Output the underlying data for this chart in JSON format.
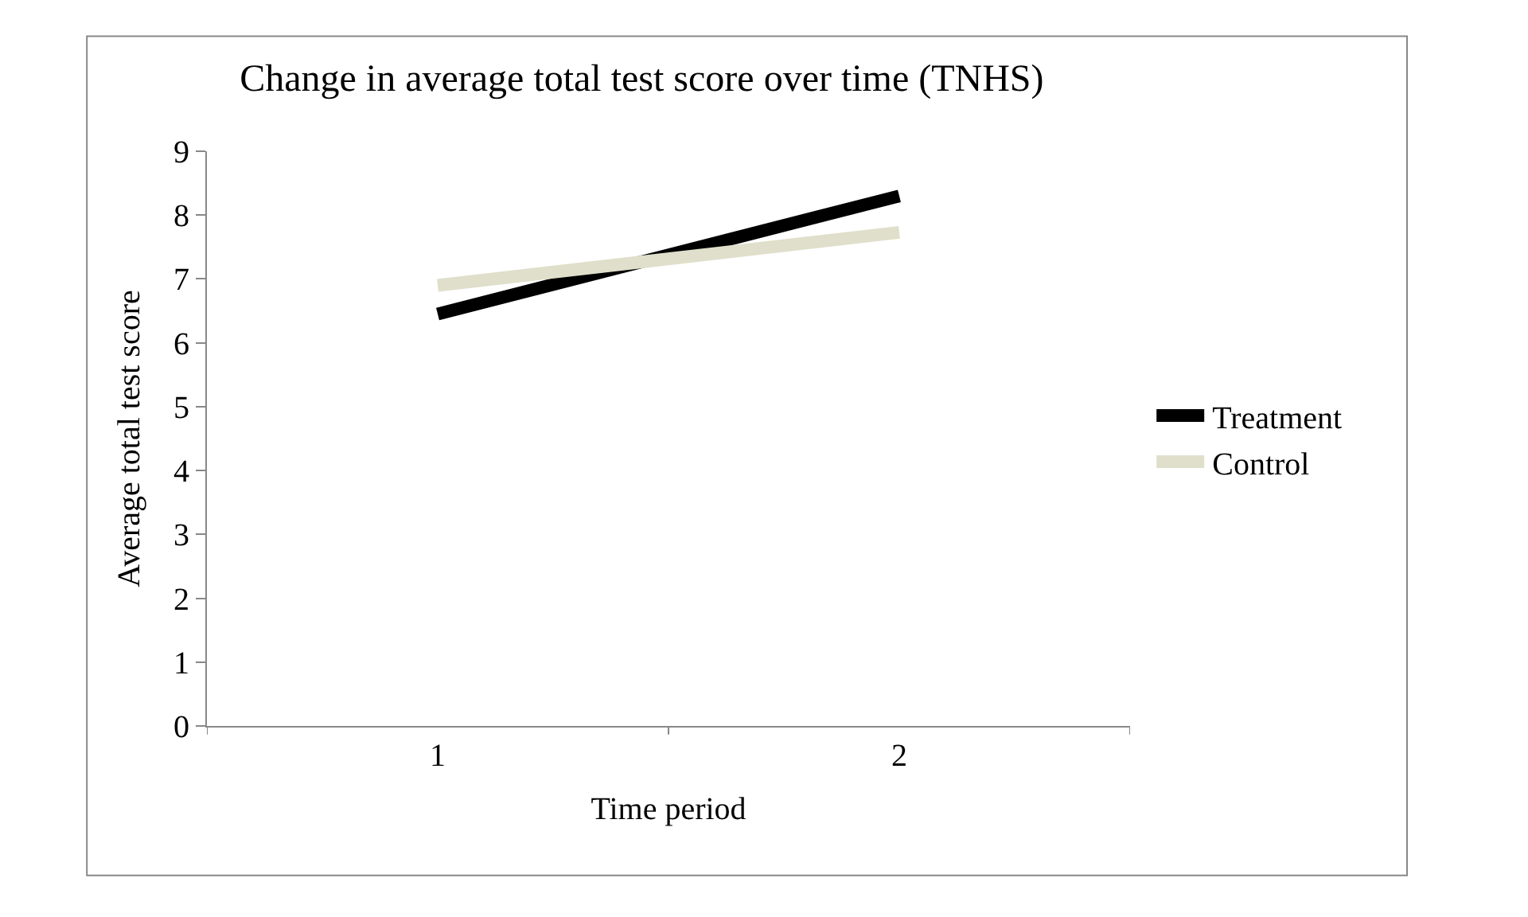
{
  "chart_data": {
    "type": "line",
    "title": "Change in average total test score over time (TNHS)",
    "xlabel": "Time period",
    "ylabel": "Average total test score",
    "categories": [
      "1",
      "2"
    ],
    "series": [
      {
        "name": "Treatment",
        "color": "#000000",
        "values": [
          6.45,
          8.3
        ]
      },
      {
        "name": "Control",
        "color": "#e0dfcb",
        "values": [
          6.9,
          7.73
        ]
      }
    ],
    "ylim": [
      0,
      9
    ],
    "yticks": [
      0,
      1,
      2,
      3,
      4,
      5,
      6,
      7,
      8,
      9
    ],
    "legend": "right",
    "marker": "none",
    "line_style": "solid"
  }
}
